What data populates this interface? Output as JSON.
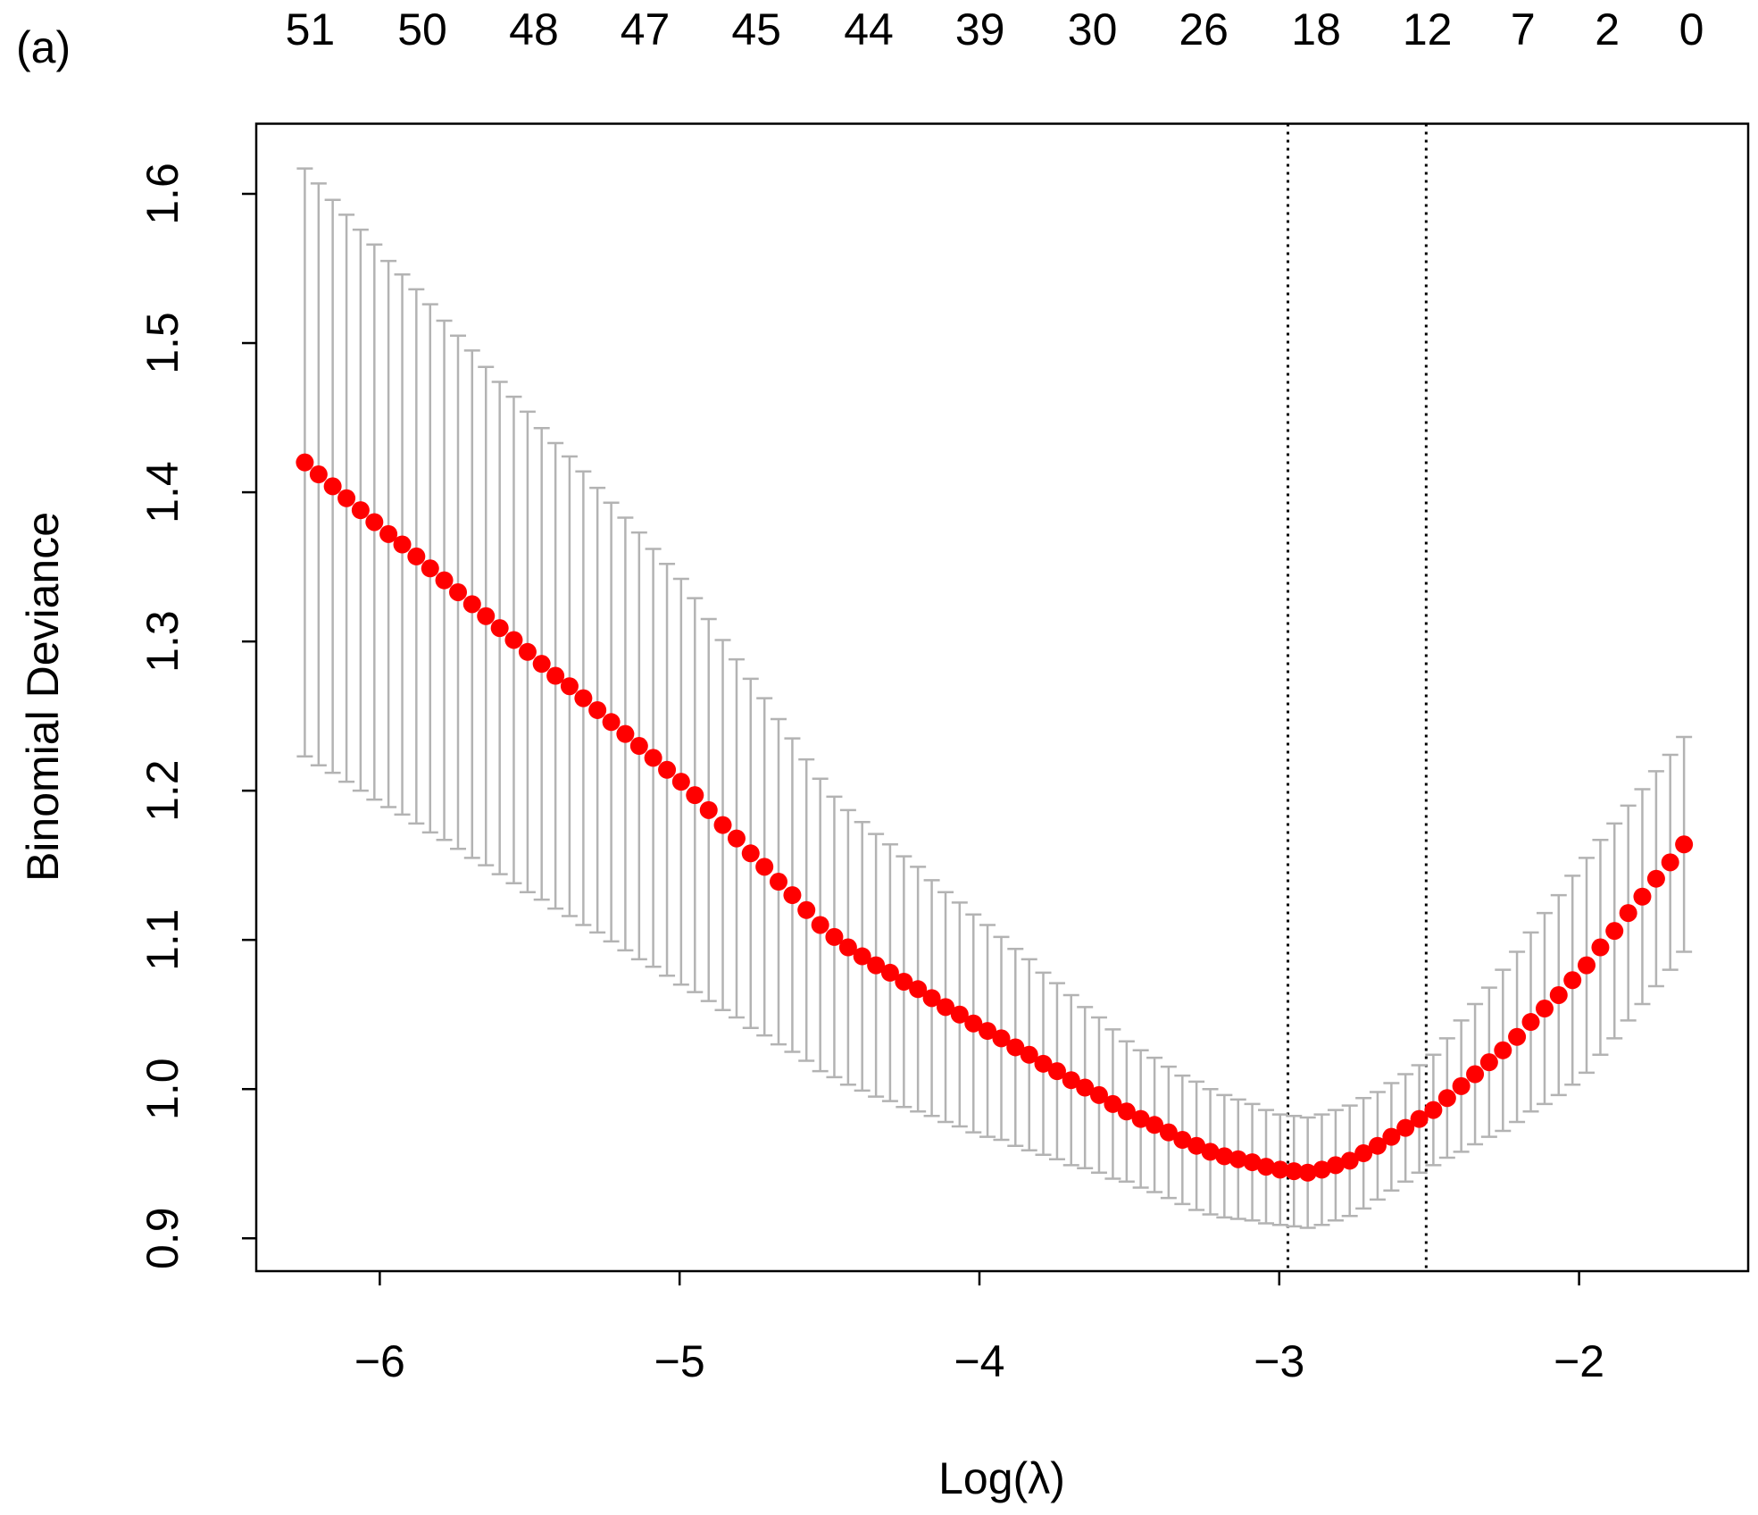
{
  "chart_data": {
    "type": "errorbar",
    "panel_label": "(a)",
    "y_label": "Binomial Deviance",
    "x_label": "Log(λ)",
    "xlim": [
      -6.412,
      -1.436
    ],
    "ylim": [
      0.878,
      1.647
    ],
    "xticks": [
      {
        "value": -6,
        "label": "−6"
      },
      {
        "value": -5,
        "label": "−5"
      },
      {
        "value": -4,
        "label": "−4"
      },
      {
        "value": -3,
        "label": "−3"
      },
      {
        "value": -2,
        "label": "−2"
      }
    ],
    "yticks": [
      0.9,
      {
        "value": 1,
        "label": "1.0"
      },
      1.1,
      1.2,
      1.3,
      1.4,
      1.5,
      1.6
    ],
    "x2ticks": [
      {
        "value": -6.232,
        "label": "51"
      },
      {
        "value": -5.858,
        "label": "50"
      },
      {
        "value": -5.486,
        "label": "48"
      },
      {
        "value": -5.115,
        "label": "47"
      },
      {
        "value": -4.744,
        "label": "45"
      },
      {
        "value": -4.369,
        "label": "44"
      },
      {
        "value": -3.998,
        "label": "39"
      },
      {
        "value": -3.623,
        "label": "30"
      },
      {
        "value": -3.252,
        "label": "26"
      },
      {
        "value": -2.877,
        "label": "18"
      },
      {
        "value": -2.506,
        "label": "12"
      },
      {
        "value": -2.187,
        "label": "7"
      },
      {
        "value": -1.906,
        "label": "2"
      },
      {
        "value": -1.625,
        "label": "0"
      }
    ],
    "vlines": [
      -2.971,
      -2.51
    ],
    "color": "#ff0000",
    "error_color": "#b3b3b3",
    "x": [
      -6.25,
      -6.204,
      -6.157,
      -6.111,
      -6.064,
      -6.018,
      -5.971,
      -5.925,
      -5.878,
      -5.832,
      -5.785,
      -5.739,
      -5.692,
      -5.646,
      -5.6,
      -5.553,
      -5.507,
      -5.46,
      -5.414,
      -5.367,
      -5.321,
      -5.274,
      -5.228,
      -5.181,
      -5.135,
      -5.088,
      -5.042,
      -4.995,
      -4.949,
      -4.903,
      -4.856,
      -4.81,
      -4.763,
      -4.717,
      -4.67,
      -4.624,
      -4.577,
      -4.531,
      -4.484,
      -4.438,
      -4.391,
      -4.345,
      -4.298,
      -4.252,
      -4.205,
      -4.159,
      -4.113,
      -4.066,
      -4.02,
      -3.973,
      -3.927,
      -3.88,
      -3.834,
      -3.787,
      -3.741,
      -3.694,
      -3.648,
      -3.601,
      -3.555,
      -3.509,
      -3.462,
      -3.416,
      -3.369,
      -3.323,
      -3.276,
      -3.23,
      -3.183,
      -3.137,
      -3.09,
      -3.044,
      -2.997,
      -2.951,
      -2.905,
      -2.858,
      -2.812,
      -2.765,
      -2.719,
      -2.672,
      -2.626,
      -2.579,
      -2.533,
      -2.486,
      -2.44,
      -2.393,
      -2.347,
      -2.3,
      -2.254,
      -2.207,
      -2.161,
      -2.115,
      -2.068,
      -2.022,
      -1.975,
      -1.929,
      -1.882,
      -1.836,
      -1.789,
      -1.743,
      -1.696,
      -1.65
    ],
    "values": [
      1.42,
      1.412,
      1.404,
      1.396,
      1.388,
      1.38,
      1.372,
      1.365,
      1.357,
      1.349,
      1.341,
      1.333,
      1.325,
      1.317,
      1.309,
      1.301,
      1.293,
      1.285,
      1.277,
      1.27,
      1.262,
      1.254,
      1.246,
      1.238,
      1.23,
      1.222,
      1.214,
      1.206,
      1.197,
      1.187,
      1.177,
      1.168,
      1.158,
      1.149,
      1.139,
      1.13,
      1.12,
      1.11,
      1.102,
      1.095,
      1.089,
      1.083,
      1.078,
      1.072,
      1.067,
      1.061,
      1.055,
      1.05,
      1.044,
      1.039,
      1.034,
      1.028,
      1.023,
      1.017,
      1.012,
      1.006,
      1.001,
      0.996,
      0.99,
      0.985,
      0.98,
      0.976,
      0.971,
      0.966,
      0.962,
      0.958,
      0.955,
      0.953,
      0.951,
      0.948,
      0.946,
      0.945,
      0.944,
      0.946,
      0.949,
      0.952,
      0.957,
      0.962,
      0.968,
      0.974,
      0.98,
      0.986,
      0.994,
      1.002,
      1.01,
      1.018,
      1.026,
      1.035,
      1.045,
      1.054,
      1.063,
      1.073,
      1.083,
      1.095,
      1.106,
      1.118,
      1.129,
      1.141,
      1.152,
      1.164
    ],
    "errors": [
      0.197,
      0.195,
      0.192,
      0.19,
      0.188,
      0.186,
      0.183,
      0.181,
      0.179,
      0.177,
      0.174,
      0.172,
      0.17,
      0.167,
      0.165,
      0.163,
      0.161,
      0.158,
      0.156,
      0.154,
      0.152,
      0.149,
      0.147,
      0.145,
      0.143,
      0.14,
      0.138,
      0.136,
      0.132,
      0.128,
      0.124,
      0.12,
      0.117,
      0.113,
      0.109,
      0.105,
      0.101,
      0.098,
      0.094,
      0.092,
      0.09,
      0.088,
      0.086,
      0.084,
      0.082,
      0.079,
      0.077,
      0.075,
      0.073,
      0.071,
      0.068,
      0.066,
      0.064,
      0.061,
      0.059,
      0.057,
      0.054,
      0.052,
      0.05,
      0.047,
      0.046,
      0.045,
      0.044,
      0.043,
      0.043,
      0.042,
      0.041,
      0.04,
      0.039,
      0.038,
      0.037,
      0.037,
      0.037,
      0.037,
      0.037,
      0.037,
      0.037,
      0.036,
      0.036,
      0.036,
      0.036,
      0.037,
      0.04,
      0.044,
      0.047,
      0.05,
      0.054,
      0.057,
      0.06,
      0.064,
      0.067,
      0.07,
      0.072,
      0.072,
      0.072,
      0.072,
      0.072,
      0.072,
      0.072,
      0.072
    ]
  }
}
